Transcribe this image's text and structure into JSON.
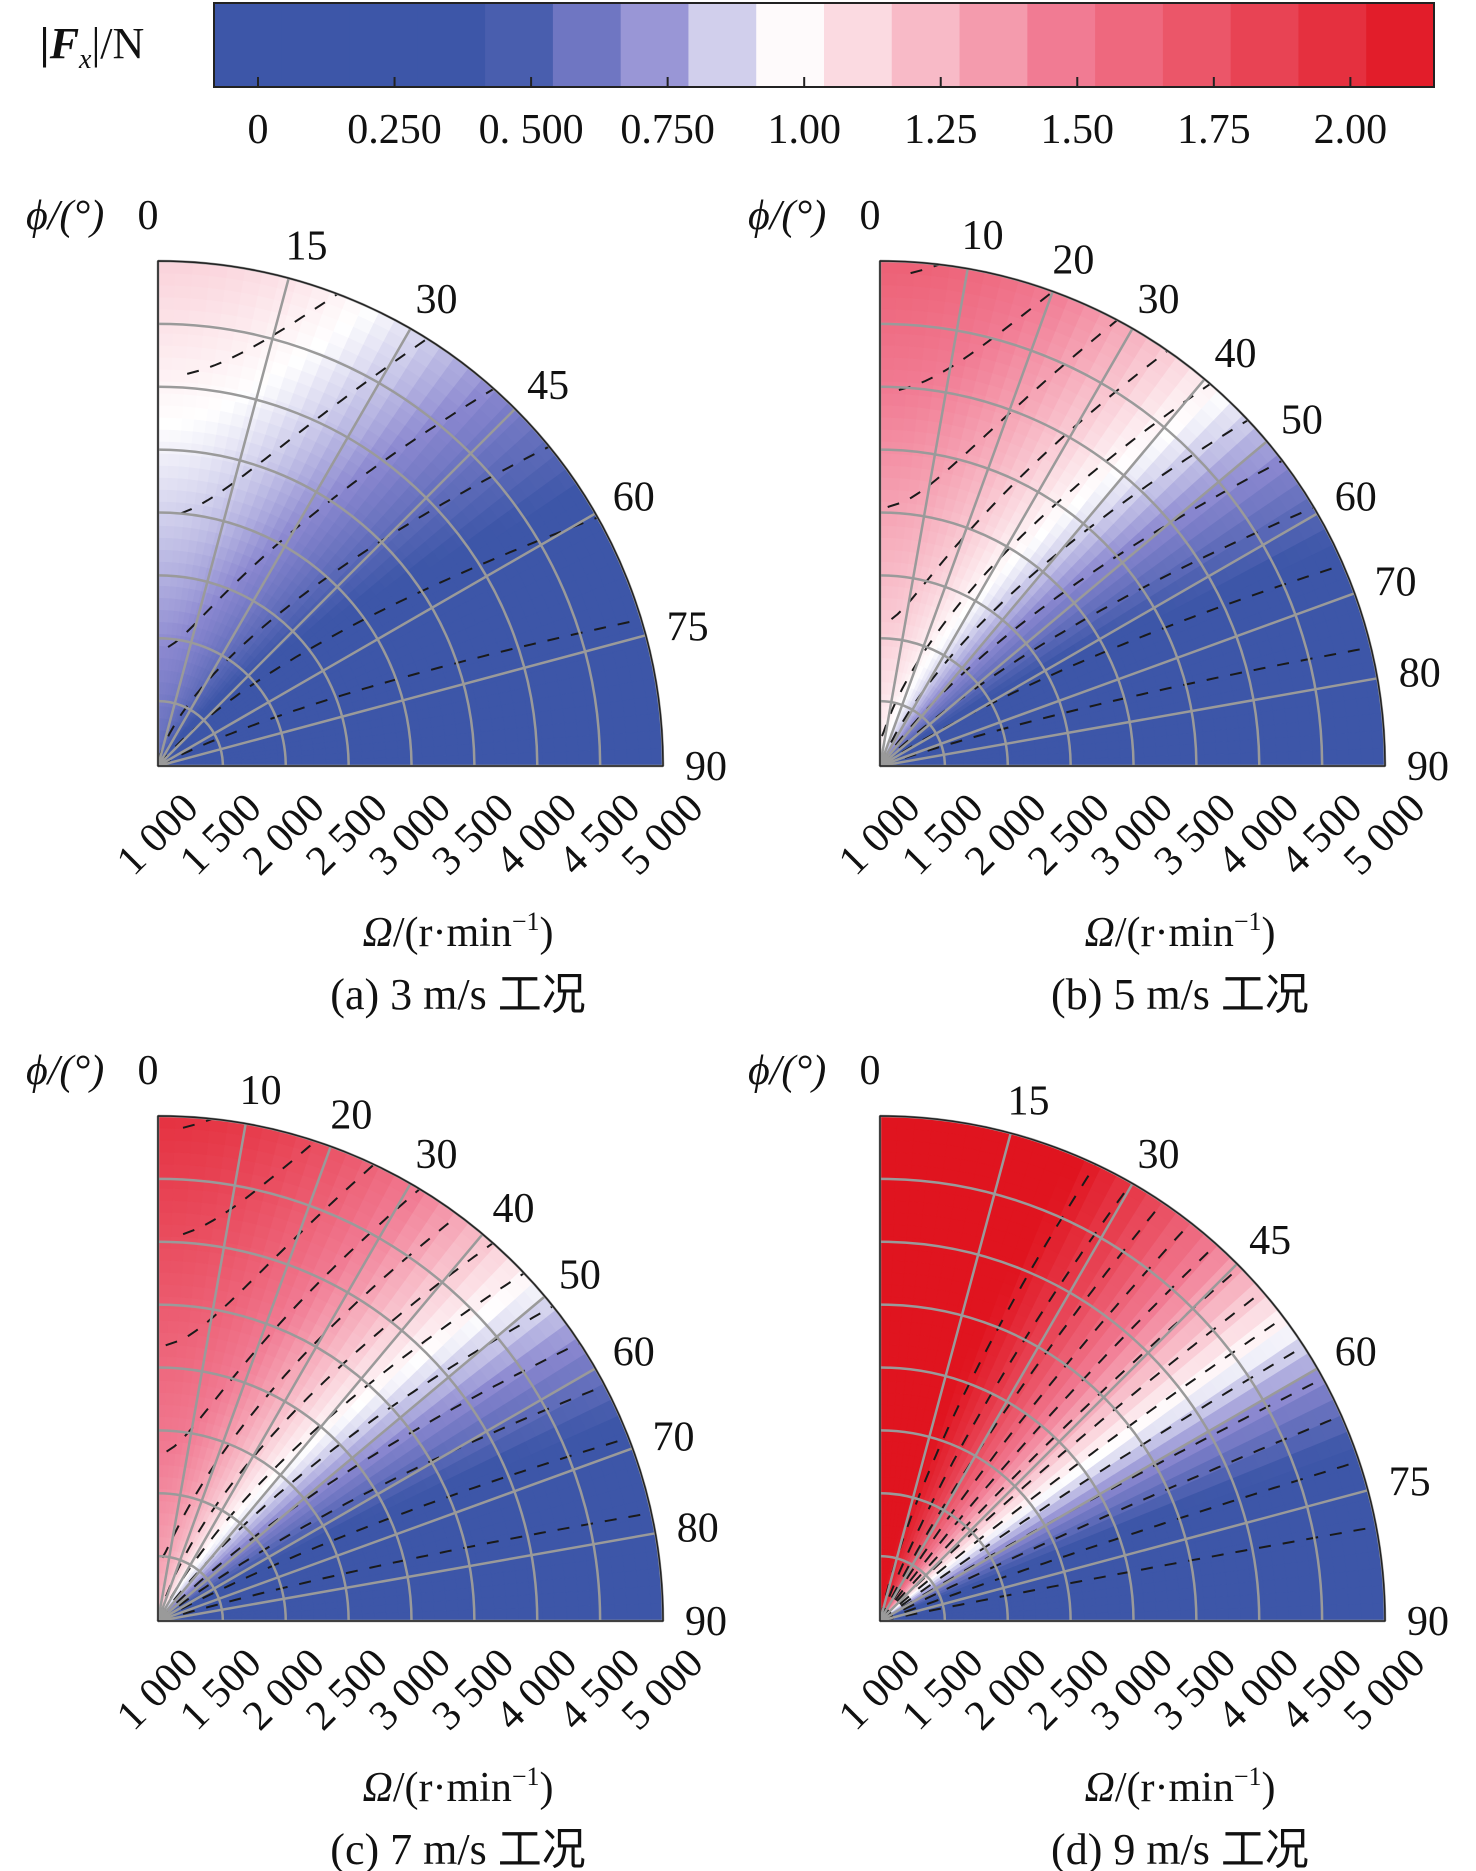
{
  "colorbar": {
    "title_main": "|F",
    "title_sub": "x",
    "title_tail": "|/N",
    "ticks": [
      {
        "value": 0,
        "label": "0"
      },
      {
        "value": 0.25,
        "label": "0.250"
      },
      {
        "value": 0.5,
        "label": "0. 500"
      },
      {
        "value": 0.75,
        "label": "0.750"
      },
      {
        "value": 1.0,
        "label": "1.00"
      },
      {
        "value": 1.25,
        "label": "1.25"
      },
      {
        "value": 1.5,
        "label": "1.50"
      },
      {
        "value": 1.75,
        "label": "1.75"
      },
      {
        "value": 2.0,
        "label": "2.00"
      }
    ],
    "range": [
      0,
      2.16
    ],
    "colors": {
      "low": "#3d56a8",
      "mid_low": "#8b88d0",
      "mid": "#ffffff",
      "mid_high": "#f17b93",
      "high": "#e0141f"
    }
  },
  "chart_data": [
    {
      "type": "heatmap",
      "caption": "(a) 3 m/s 工况",
      "phi_label": "ϕ/(°)",
      "omega_label": "Ω/(r·min",
      "omega_label_sup": "−1",
      "omega_label_end": ")",
      "phi_ticks": [
        0,
        15,
        30,
        45,
        60,
        75,
        90
      ],
      "omega_ticks": [
        "1 000",
        "1 500",
        "2 000",
        "2 500",
        "3 000",
        "3 500",
        "4 000",
        "4 500",
        "5 000"
      ],
      "omega_range": [
        1000,
        5000
      ],
      "phi_range": [
        0,
        90
      ],
      "field": {
        "base": 0.22,
        "amp": 0.95,
        "omega_exp": 0.9,
        "omega_min_weight": 0.4
      }
    },
    {
      "type": "heatmap",
      "caption": "(b) 5 m/s 工况",
      "phi_label": "ϕ/(°)",
      "omega_label": "Ω/(r·min",
      "omega_label_sup": "−1",
      "omega_label_end": ")",
      "phi_ticks": [
        0,
        10,
        20,
        30,
        40,
        50,
        60,
        70,
        80,
        90
      ],
      "omega_ticks": [
        "1 000",
        "1 500",
        "2 000",
        "2 500",
        "3 000",
        "3 500",
        "4 000",
        "4 500",
        "5 000"
      ],
      "omega_range": [
        1000,
        5000
      ],
      "phi_range": [
        0,
        90
      ],
      "field": {
        "base": 0.22,
        "amp": 1.45,
        "omega_exp": 1.0,
        "omega_min_weight": 0.55
      }
    },
    {
      "type": "heatmap",
      "caption": "(c) 7 m/s 工况",
      "phi_label": "ϕ/(°)",
      "omega_label": "Ω/(r·min",
      "omega_label_sup": "−1",
      "omega_label_end": ")",
      "phi_ticks": [
        0,
        10,
        20,
        30,
        40,
        50,
        60,
        70,
        80,
        90
      ],
      "omega_ticks": [
        "1 000",
        "1 500",
        "2 000",
        "2 500",
        "3 000",
        "3 500",
        "4 000",
        "4 500",
        "5 000"
      ],
      "omega_range": [
        1000,
        5000
      ],
      "phi_range": [
        0,
        90
      ],
      "field": {
        "base": 0.22,
        "amp": 1.75,
        "omega_exp": 1.0,
        "omega_min_weight": 0.6
      }
    },
    {
      "type": "heatmap",
      "caption": "(d) 9 m/s 工况",
      "phi_label": "ϕ/(°)",
      "omega_label": "Ω/(r·min",
      "omega_label_sup": "−1",
      "omega_label_end": ")",
      "phi_ticks": [
        0,
        15,
        30,
        45,
        60,
        75,
        90
      ],
      "omega_ticks": [
        "1 000",
        "1 500",
        "2 000",
        "2 500",
        "3 000",
        "3 500",
        "4 000",
        "4 500",
        "5 000"
      ],
      "omega_range": [
        1000,
        5000
      ],
      "phi_range": [
        0,
        90
      ],
      "field": {
        "base": 0.22,
        "amp": 2.3,
        "omega_exp": 0.85,
        "omega_min_weight": 0.85
      }
    }
  ]
}
